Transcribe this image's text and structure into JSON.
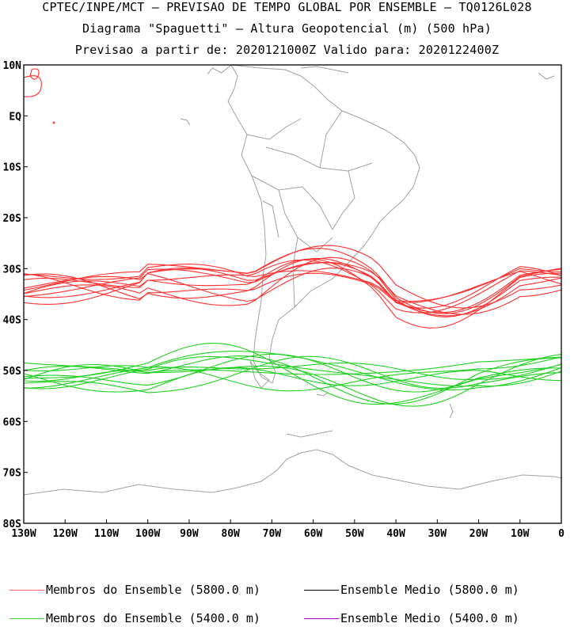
{
  "header": {
    "line1": "CPTEC/INPE/MCT – PREVISAO DE TEMPO GLOBAL POR ENSEMBLE – TQ0126L028",
    "line2": "Diagrama \"Spaguetti\" – Altura Geopotencial (m) (500 hPa)",
    "line3": "Previsao a partir de: 2020121000Z  Valido para: 2020122400Z"
  },
  "map": {
    "lat_labels": [
      "10N",
      "EQ",
      "10S",
      "20S",
      "30S",
      "40S",
      "50S",
      "60S",
      "70S",
      "80S"
    ],
    "lon_labels": [
      "130W",
      "120W",
      "110W",
      "100W",
      "90W",
      "80W",
      "70W",
      "60W",
      "50W",
      "40W",
      "30W",
      "20W",
      "10W",
      "0"
    ],
    "lat_range": [
      -80,
      10
    ],
    "lon_range": [
      -130,
      0
    ],
    "colors": {
      "red": "#ff3030",
      "green": "#20d020",
      "coast": "#a0a0a0"
    }
  },
  "legend": {
    "members_5800": "Membros do Ensemble (5800.0 m)",
    "mean_5800": "Ensemble Medio (5800.0 m)",
    "members_5400": "Membros do Ensemble (5400.0 m)",
    "mean_5400": "Ensemble Medio (5400.0 m)",
    "colors": {
      "members_5800": "#ff6060",
      "mean_5800": "#000000",
      "members_5400": "#40d040",
      "mean_5400": "#a000c0"
    }
  }
}
